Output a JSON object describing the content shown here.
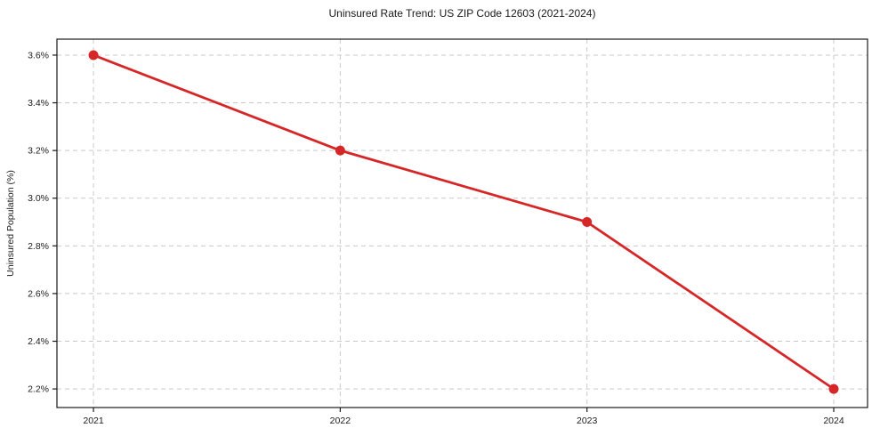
{
  "title": "Uninsured Rate Trend: US ZIP Code 12603 (2021-2024)",
  "chart_data": {
    "type": "line",
    "title": "Uninsured Rate Trend: US ZIP Code 12603 (2021-2024)",
    "x": [
      2021,
      2022,
      2023,
      2024
    ],
    "xtick_labels": [
      "2021",
      "2022",
      "2023",
      "2024"
    ],
    "series": [
      {
        "name": "Uninsured Rate",
        "values": [
          3.6,
          3.2,
          2.9,
          2.2
        ]
      }
    ],
    "xlabel": "",
    "ylabel": "Uninsured Population (%)",
    "xlim": [
      2020.852,
      2024.137
    ],
    "ylim": [
      2.122,
      3.667
    ],
    "yticks": [
      2.2,
      2.4,
      2.6,
      2.8,
      3.0,
      3.2,
      3.4,
      3.6
    ],
    "ytick_labels": [
      "2.2%",
      "2.4%",
      "2.6%",
      "2.8%",
      "3.0%",
      "3.2%",
      "3.4%",
      "3.6%"
    ],
    "grid": true,
    "legend": "none",
    "colors": {
      "line": "#d62728",
      "marker": "#d62728",
      "grid": "#c9c9c9",
      "spine": "#1a1a1a",
      "text": "#1a1a1a",
      "background": "#ffffff"
    }
  }
}
